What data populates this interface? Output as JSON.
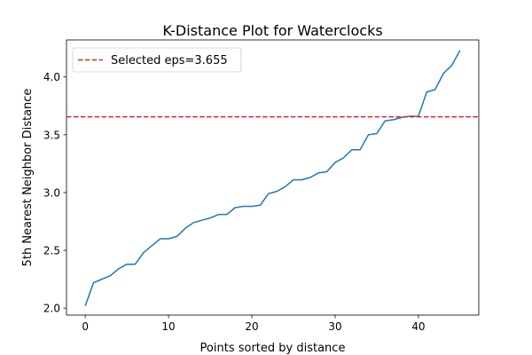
{
  "chart_data": {
    "type": "line",
    "title": "K-Distance Plot for Waterclocks",
    "xlabel": "Points sorted by distance",
    "ylabel": "5th Nearest Neighbor Distance",
    "xlim": [
      -2.25,
      47.25
    ],
    "ylim": [
      1.94,
      4.32
    ],
    "x_ticks": [
      0,
      10,
      20,
      30,
      40
    ],
    "y_ticks": [
      2.0,
      2.5,
      3.0,
      3.5,
      4.0
    ],
    "y_tick_labels": [
      "2.0",
      "2.5",
      "3.0",
      "3.5",
      "4.0"
    ],
    "grid": false,
    "legend_position": "top-left",
    "series": [
      {
        "color": "#1f77b4",
        "style": "solid",
        "x": [
          0,
          1,
          2,
          3,
          4,
          5,
          6,
          7,
          8,
          9,
          10,
          11,
          12,
          13,
          14,
          15,
          16,
          17,
          18,
          19,
          20,
          21,
          22,
          23,
          24,
          25,
          26,
          27,
          28,
          29,
          30,
          31,
          32,
          33,
          34,
          35,
          36,
          37,
          38,
          39,
          40,
          41,
          42,
          43,
          44,
          45
        ],
        "values": [
          2.02,
          2.22,
          2.25,
          2.28,
          2.34,
          2.38,
          2.38,
          2.48,
          2.54,
          2.6,
          2.6,
          2.62,
          2.69,
          2.74,
          2.76,
          2.78,
          2.81,
          2.81,
          2.87,
          2.88,
          2.88,
          2.89,
          2.99,
          3.01,
          3.05,
          3.11,
          3.11,
          3.13,
          3.17,
          3.18,
          3.26,
          3.3,
          3.37,
          3.37,
          3.5,
          3.51,
          3.62,
          3.63,
          3.65,
          3.66,
          3.66,
          3.87,
          3.89,
          4.03,
          4.1,
          4.23
        ]
      }
    ],
    "reference_lines": [
      {
        "orientation": "horizontal",
        "value": 3.655,
        "color": "#d62728",
        "style": "dashed",
        "label": "Selected eps=3.655"
      }
    ]
  }
}
